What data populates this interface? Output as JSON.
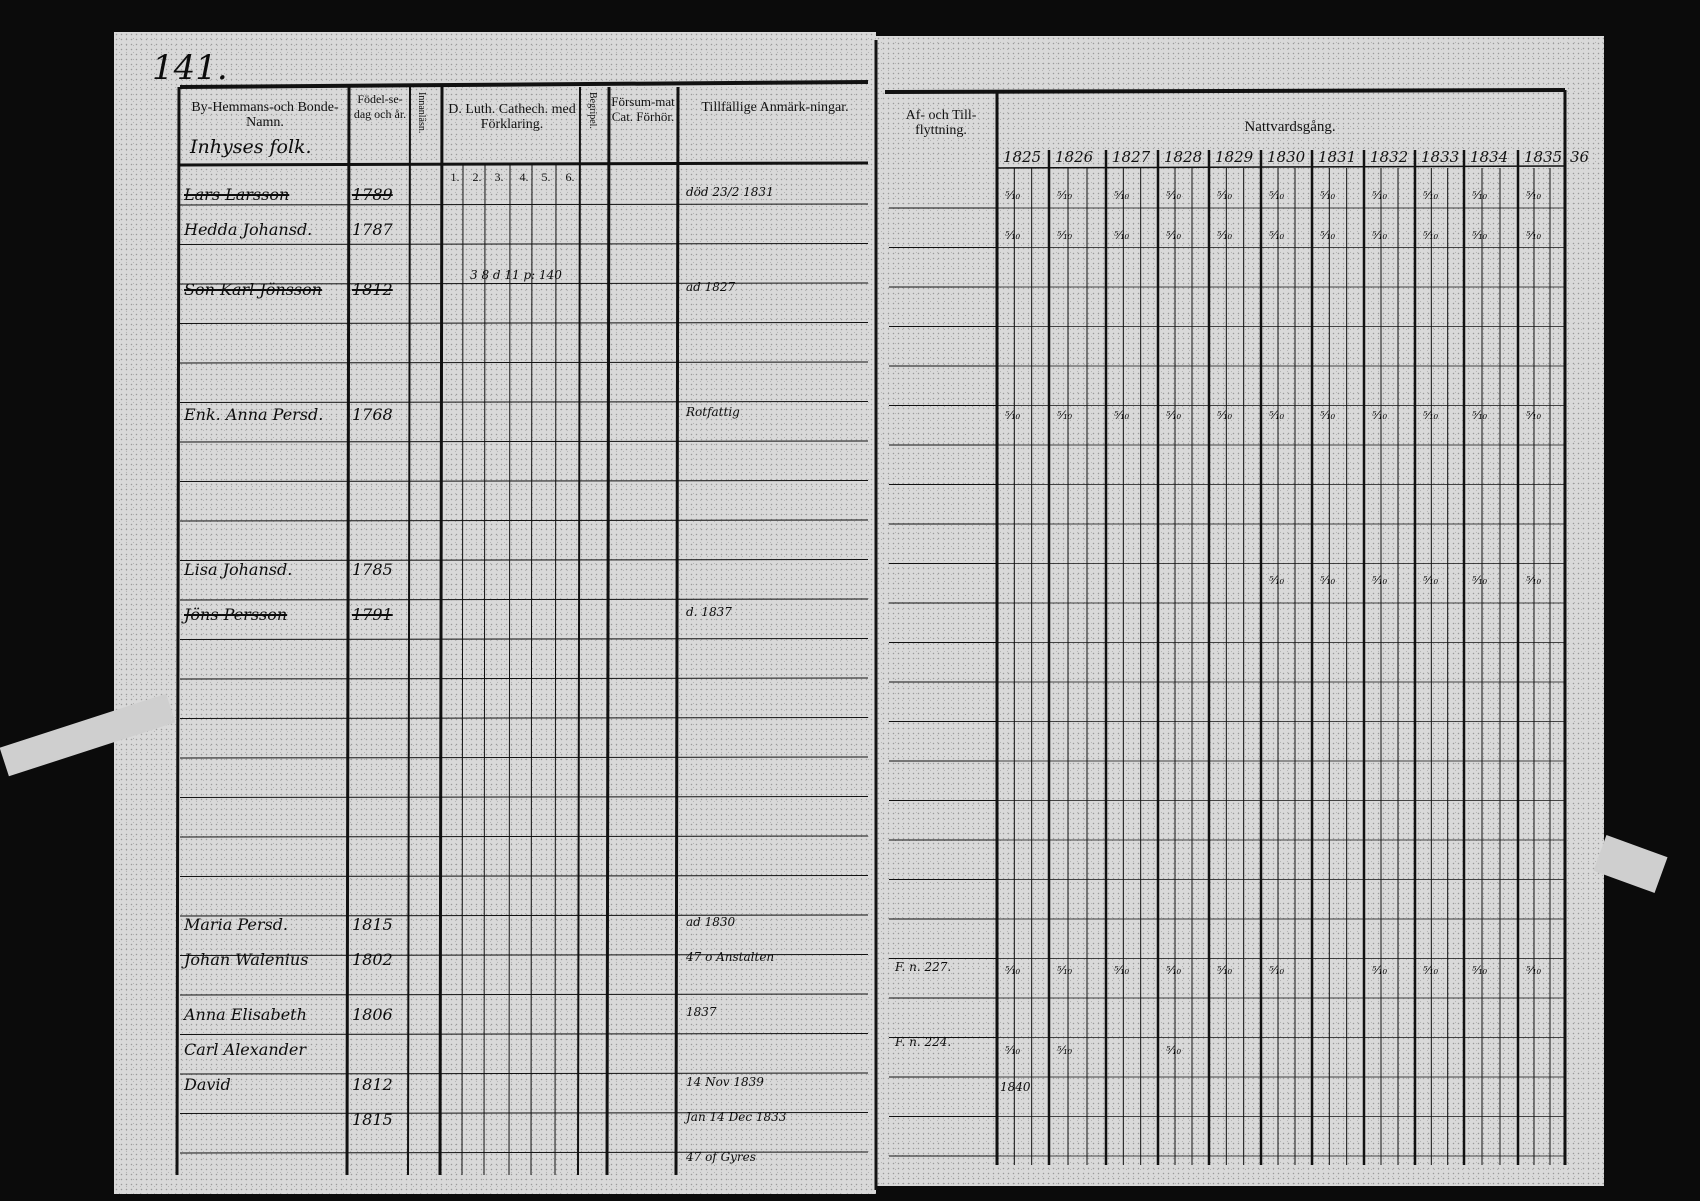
{
  "page_number": "141.",
  "left_headers": {
    "name": "By-Hemmans-och Bonde-Namn.",
    "group": "Inhyses folk.",
    "birth": "Födel-se-dag och år.",
    "reading": "Innanläsn.",
    "catechism": "D. Luth. Cathech. med Förklaring.",
    "catechism_cols": [
      "1.",
      "2.",
      "3.",
      "4.",
      "5.",
      "6."
    ],
    "bible": "Begripel.",
    "missed": "Försum-mat Cat. Förhör.",
    "remarks": "Tillfällige Anmärk-ningar."
  },
  "right_headers": {
    "moves": "Af- och Till-flyttning.",
    "communion": "Nattvardsgång.",
    "years": [
      "1825",
      "1826",
      "1827",
      "1828",
      "1829",
      "1830",
      "1831",
      "1832",
      "1833",
      "1834",
      "1835",
      "36"
    ]
  },
  "entries": [
    {
      "name": "Lars Larsson",
      "birth": "1789",
      "remark": "död 23/2 1831"
    },
    {
      "name": "Hedda Johansd.",
      "birth": "1787",
      "remark": ""
    },
    {
      "name": "Son Karl Jönsson",
      "birth": "1812",
      "remark": "ad 1827",
      "note": "3 8 d 11 p: 140"
    },
    {
      "name": "Enk. Anna Persd.",
      "birth": "1768",
      "remark": "Rotfattig"
    },
    {
      "name": "Lisa Johansd.",
      "birth": "1785",
      "remark": ""
    },
    {
      "name": "Jöns Persson",
      "birth": "1791",
      "remark": "d. 1837"
    },
    {
      "name": "Maria Persd.",
      "birth": "1815",
      "remark": "ad 1830"
    },
    {
      "name": "Johan Walenius",
      "birth": "1802",
      "remark": "47 o Anstalten"
    },
    {
      "name": "Anna Elisabeth",
      "birth": "1806",
      "remark": "1837"
    },
    {
      "name": "Carl Alexander",
      "birth": "",
      "remark": ""
    },
    {
      "name": "David",
      "birth": "1812",
      "remark": "14 Nov 1839"
    },
    {
      "name": "",
      "birth": "1815",
      "remark": "Jan 14 Dec 1833"
    },
    {
      "name": "",
      "birth": "",
      "remark": "47 of Gyres"
    }
  ],
  "moves": [
    "F. n. 227.",
    "F. n. 224.",
    "1840"
  ]
}
